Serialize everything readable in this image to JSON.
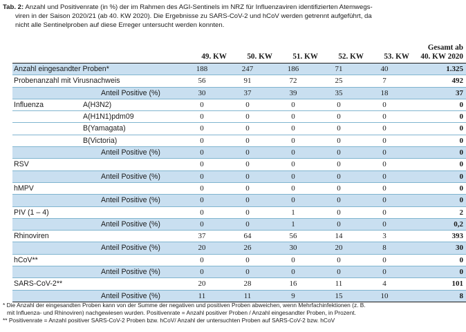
{
  "caption": {
    "label": "Tab. 2:",
    "text1": "Anzahl und Positivenrate (in %) der im Rahmen des AGI-Sentinels im NRZ für Influenzaviren identifizierten Atemwegs-",
    "text2": "viren in der Saison 2020/21 (ab 40. KW 2020). Die Ergebnisse zu SARS-CoV-2 und hCoV werden getrennt aufgeführt, da",
    "text3": "nicht alle Sentinelproben auf diese Erreger untersucht werden konnten."
  },
  "table": {
    "headers": [
      "49. KW",
      "50. KW",
      "51. KW",
      "52. KW",
      "53. KW"
    ],
    "total_header_line1": "Gesamt ab",
    "total_header_line2": "40. KW 2020",
    "rows": [
      {
        "label": "Anzahl eingesandter Proben*",
        "sub": "",
        "values": [
          "188",
          "247",
          "186",
          "71",
          "40"
        ],
        "total": "1.325",
        "style": "blue"
      },
      {
        "label": "Probenanzahl mit Virusnachweis",
        "sub": "",
        "values": [
          "56",
          "91",
          "72",
          "25",
          "7"
        ],
        "total": "492",
        "style": "plain"
      },
      {
        "label": "",
        "sub": "Anteil Positive (%)",
        "values": [
          "30",
          "37",
          "39",
          "35",
          "18"
        ],
        "total": "37",
        "style": "blue anteil"
      },
      {
        "label": "Influenza",
        "sub": "A(H3N2)",
        "values": [
          "0",
          "0",
          "0",
          "0",
          "0"
        ],
        "total": "0",
        "style": "plain"
      },
      {
        "label": "",
        "sub": "A(H1N1)pdm09",
        "values": [
          "0",
          "0",
          "0",
          "0",
          "0"
        ],
        "total": "0",
        "style": "plain"
      },
      {
        "label": "",
        "sub": "B(Yamagata)",
        "values": [
          "0",
          "0",
          "0",
          "0",
          "0"
        ],
        "total": "0",
        "style": "plain"
      },
      {
        "label": "",
        "sub": "B(Victoria)",
        "values": [
          "0",
          "0",
          "0",
          "0",
          "0"
        ],
        "total": "0",
        "style": "plain"
      },
      {
        "label": "",
        "sub": "Anteil Positive (%)",
        "values": [
          "0",
          "0",
          "0",
          "0",
          "0"
        ],
        "total": "0",
        "style": "blue anteil"
      },
      {
        "label": "RSV",
        "sub": "",
        "values": [
          "0",
          "0",
          "0",
          "0",
          "0"
        ],
        "total": "0",
        "style": "plain"
      },
      {
        "label": "",
        "sub": "Anteil Positive (%)",
        "values": [
          "0",
          "0",
          "0",
          "0",
          "0"
        ],
        "total": "0",
        "style": "blue anteil"
      },
      {
        "label": "hMPV",
        "sub": "",
        "values": [
          "0",
          "0",
          "0",
          "0",
          "0"
        ],
        "total": "0",
        "style": "plain"
      },
      {
        "label": "",
        "sub": "Anteil Positive (%)",
        "values": [
          "0",
          "0",
          "0",
          "0",
          "0"
        ],
        "total": "0",
        "style": "blue anteil"
      },
      {
        "label": "PIV (1 – 4)",
        "sub": "",
        "values": [
          "0",
          "0",
          "1",
          "0",
          "0"
        ],
        "total": "2",
        "style": "plain"
      },
      {
        "label": "",
        "sub": "Anteil Positive (%)",
        "values": [
          "0",
          "0",
          "1",
          "0",
          "0"
        ],
        "total": "0,2",
        "style": "blue anteil"
      },
      {
        "label": "Rhinoviren",
        "sub": "",
        "values": [
          "37",
          "64",
          "56",
          "14",
          "3"
        ],
        "total": "393",
        "style": "plain"
      },
      {
        "label": "",
        "sub": "Anteil Positive (%)",
        "values": [
          "20",
          "26",
          "30",
          "20",
          "8"
        ],
        "total": "30",
        "style": "blue anteil"
      },
      {
        "label": "hCoV**",
        "sub": "",
        "values": [
          "0",
          "0",
          "0",
          "0",
          "0"
        ],
        "total": "0",
        "style": "plain"
      },
      {
        "label": "",
        "sub": "Anteil Positive (%)",
        "values": [
          "0",
          "0",
          "0",
          "0",
          "0"
        ],
        "total": "0",
        "style": "blue anteil"
      },
      {
        "label": "SARS-CoV-2**",
        "sub": "",
        "values": [
          "20",
          "28",
          "16",
          "11",
          "4"
        ],
        "total": "101",
        "style": "plain"
      },
      {
        "label": "",
        "sub": "Anteil Positive (%)",
        "values": [
          "11",
          "11",
          "9",
          "15",
          "10"
        ],
        "total": "8",
        "style": "blue anteil"
      }
    ]
  },
  "footnotes": {
    "line1": "* Die Anzahl der eingesandten Proben kann von der Summe der negativen und positiven Proben abweichen, wenn Mehrfachinfektionen (z. B.",
    "line2": "mit Influenza- und Rhinoviren) nachgewiesen wurden. Positivenrate = Anzahl positiver Proben / Anzahl eingesandter Proben, in Prozent.",
    "line3": "** Positivenrate = Anzahl positiver SARS-CoV-2 Proben bzw. hCoV/ Anzahl der untersuchten Proben auf SARS-CoV-2 bzw. hCoV"
  },
  "colors": {
    "row_highlight": "#c9dff0",
    "row_rule": "#7fb4cf",
    "text": "#1a1a1a"
  }
}
